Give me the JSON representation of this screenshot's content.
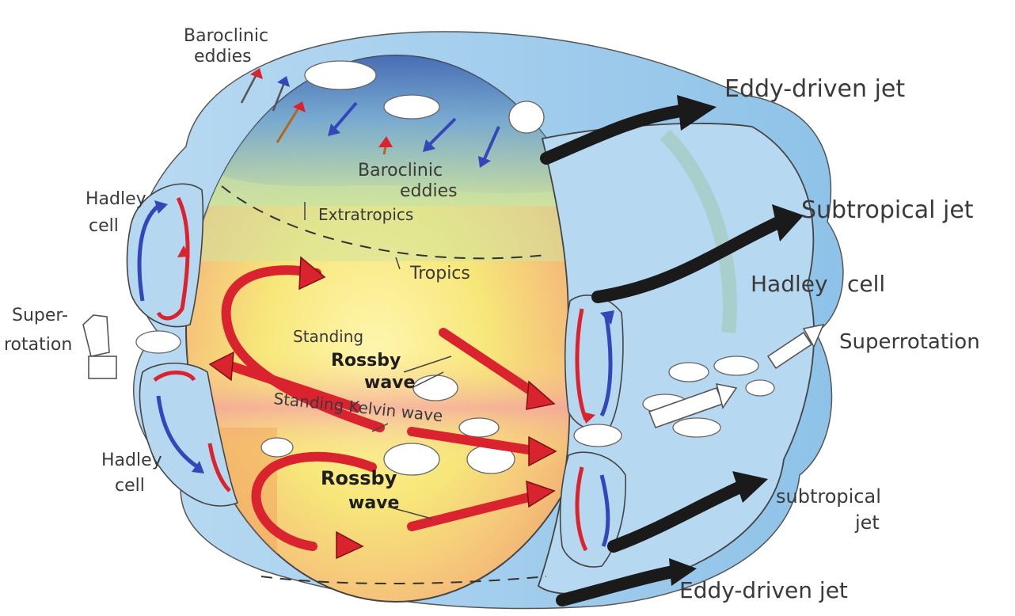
{
  "labels": {
    "baroclinic_eddies_top_1": "Baroclinic",
    "baroclinic_eddies_top_2": "eddies",
    "baroclinic_eddies_mid_1": "Baroclinic",
    "baroclinic_eddies_mid_2": "eddies",
    "eddy_driven_jet_top": "Eddy-driven jet",
    "subtropical_jet_top": "Subtropical jet",
    "hadley_cell_right_1": "Hadley",
    "hadley_cell_right_2": "cell",
    "superrotation_right": "Superrotation",
    "hadley_cell_left_top_1": "Hadley",
    "hadley_cell_left_top_2": "cell",
    "extratropics": "Extratropics",
    "tropics": "Tropics",
    "superrotation_left_1": "Super-",
    "superrotation_left_2": "rotation",
    "standing_rossby_wave_1": "Standing",
    "standing_rossby_wave_2": "Rossby",
    "standing_rossby_wave_3": "wave",
    "standing_kelvin_wave": "Standing Kelvin wave",
    "rossby_wave_1": "Rossby",
    "rossby_wave_2": "wave",
    "hadley_cell_left_bottom_1": "Hadley",
    "hadley_cell_left_bottom_2": "cell",
    "subtropical_jet_bottom_1": "subtropical",
    "subtropical_jet_bottom_2": "jet",
    "eddy_driven_jet_bottom": "Eddy-driven jet"
  },
  "colors": {
    "globe_yellow": "#f7e87a",
    "globe_green": "#cfe3a0",
    "globe_orange": "#f4a868",
    "ocean_blue": "#a9cfec",
    "deep_blue": "#3d6fc4",
    "arrow_red": "#d9232e",
    "arrow_black": "#1a1a1a",
    "arrow_blue": "#3447b8"
  }
}
